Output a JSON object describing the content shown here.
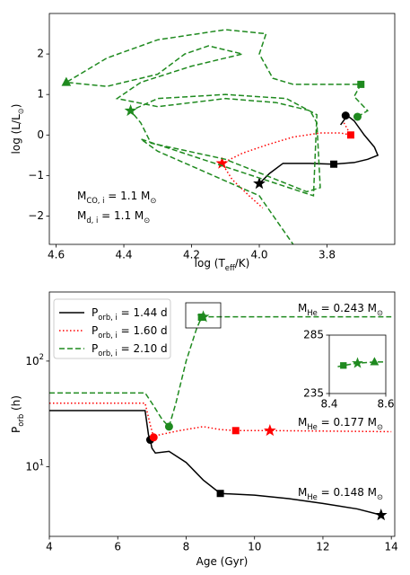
{
  "chart_data": [
    {
      "type": "line",
      "xlabel": [
        "log (T",
        "eff",
        "/K)"
      ],
      "ylabel": [
        "log (L/L",
        "⊙",
        ")"
      ],
      "xlim": [
        4.62,
        3.6
      ],
      "ylim": [
        -2.7,
        3.0
      ],
      "xticks": [
        4.6,
        4.4,
        4.2,
        {
          "value": 4,
          "label": "4.0"
        },
        3.8
      ],
      "yticks": [
        {
          "value": -2,
          "label": "−2"
        },
        {
          "value": -1,
          "label": "−1"
        },
        0,
        1,
        2
      ],
      "annotations": [
        [
          "M",
          "CO, i",
          " = 1.1 M",
          "⊙"
        ],
        [
          "M",
          "d, i",
          "   = 1.1 M",
          "⊙"
        ]
      ],
      "series": [
        {
          "color": "#000000",
          "style": "solid",
          "x": [
            3.76,
            3.74,
            3.72,
            3.69,
            3.66,
            3.65,
            3.68,
            3.72,
            3.78,
            3.85,
            3.93,
            3.97,
            4.0
          ],
          "values": [
            0.25,
            0.48,
            0.35,
            0.0,
            -0.3,
            -0.5,
            -0.6,
            -0.68,
            -0.72,
            -0.7,
            -0.7,
            -0.95,
            -1.2
          ],
          "markers": {
            "x": [
              3.745,
              3.78,
              4.0
            ],
            "y": [
              0.48,
              -0.72,
              -1.2
            ],
            "symbols": [
              "circle",
              "square",
              "star"
            ]
          }
        },
        {
          "color": "#ff0000",
          "style": "dotted",
          "x": [
            3.75,
            3.73,
            3.76,
            3.82,
            3.9,
            3.98,
            4.05,
            4.11,
            4.08,
            4.03,
            3.99
          ],
          "values": [
            0.3,
            0.0,
            0.05,
            0.05,
            -0.05,
            -0.25,
            -0.45,
            -0.7,
            -1.1,
            -1.5,
            -1.8
          ],
          "markers": {
            "x": [
              3.73,
              4.11
            ],
            "y": [
              0.0,
              -0.7
            ],
            "symbols": [
              "square",
              "star"
            ]
          }
        },
        {
          "color": "#1f8a1f",
          "style": "dashed",
          "x": [
            3.71,
            3.68,
            3.72,
            3.7,
            3.9,
            3.96,
            4.0,
            3.98,
            4.1,
            4.3,
            4.45,
            4.57,
            4.45,
            4.3,
            4.22,
            4.15,
            4.05,
            4.2,
            4.35,
            4.42,
            4.3,
            4.1,
            3.95,
            3.85,
            3.83,
            3.82,
            3.86,
            4.1,
            4.32,
            4.35,
            4.38,
            4.3,
            4.1,
            3.92,
            3.83,
            3.84,
            4.35,
            4.3,
            4.0,
            3.9
          ],
          "values": [
            0.45,
            0.6,
            0.95,
            1.25,
            1.25,
            1.4,
            2.0,
            2.5,
            2.6,
            2.35,
            1.9,
            1.3,
            1.2,
            1.5,
            2.0,
            2.2,
            2.0,
            1.7,
            1.3,
            0.9,
            0.7,
            0.9,
            0.8,
            0.6,
            0.3,
            -1.3,
            -1.4,
            -0.6,
            -0.2,
            0.3,
            0.6,
            0.9,
            1.0,
            0.9,
            0.5,
            -1.5,
            -0.1,
            -0.4,
            -1.5,
            -2.7
          ],
          "markers": {
            "x": [
              3.71,
              3.7,
              4.57,
              4.38
            ],
            "y": [
              0.45,
              1.25,
              1.3,
              0.6
            ],
            "symbols": [
              "circle",
              "square",
              "triangle",
              "star"
            ]
          }
        }
      ]
    },
    {
      "type": "line",
      "log_y": true,
      "legend": "upper left",
      "xlabel": [
        "Age (Gyr)"
      ],
      "ylabel": [
        "P",
        "orb",
        " (h)"
      ],
      "xlim": [
        4,
        14.1
      ],
      "ylim": [
        2.2,
        450
      ],
      "xticks": [
        4,
        6,
        8,
        10,
        12,
        14
      ],
      "yticks": [
        {
          "value": 10,
          "label": [
            "10",
            "1"
          ]
        },
        {
          "value": 100,
          "label": [
            "10",
            "2"
          ]
        }
      ],
      "annotations": [
        [
          "M",
          "He",
          " = 0.243 M",
          "⊙"
        ],
        [
          "M",
          "He",
          " = 0.177 M",
          "⊙"
        ],
        [
          "M",
          "He",
          " = 0.148 M",
          "⊙"
        ]
      ],
      "series": [
        {
          "name": [
            "P",
            "orb, i",
            " = 1.44 d"
          ],
          "color": "#000000",
          "style": "solid",
          "x": [
            4,
            6.8,
            6.9,
            6.95,
            7.0,
            7.1,
            7.5,
            8.0,
            8.5,
            9.0,
            10,
            11,
            12,
            13,
            13.7
          ],
          "values": [
            34,
            34,
            20,
            18,
            15,
            13.5,
            14,
            11,
            7.5,
            5.6,
            5.4,
            5.0,
            4.5,
            4.0,
            3.5
          ],
          "markers": {
            "x": [
              6.95,
              9.0,
              13.7
            ],
            "y": [
              18,
              5.6,
              3.5
            ],
            "symbols": [
              "circle",
              "square",
              "star"
            ]
          }
        },
        {
          "name": [
            "P",
            "orb, i",
            " = 1.60 d"
          ],
          "color": "#ff0000",
          "style": "dotted",
          "x": [
            4,
            6.8,
            6.95,
            7.05,
            7.2,
            7.8,
            8.5,
            9.0,
            9.45,
            10.5,
            14
          ],
          "values": [
            40,
            40,
            25,
            19,
            20,
            22,
            24,
            22.5,
            22,
            22,
            21.5
          ],
          "markers": {
            "x": [
              7.05,
              9.45,
              10.45
            ],
            "y": [
              19,
              22,
              22
            ],
            "symbols": [
              "circle",
              "square",
              "star"
            ]
          }
        },
        {
          "name": [
            "P",
            "orb, i",
            " = 2.10 d"
          ],
          "color": "#1f8a1f",
          "style": "dashed",
          "x": [
            4,
            6.8,
            7.0,
            7.3,
            7.5,
            7.7,
            8.0,
            8.3,
            8.45,
            8.5,
            9,
            14
          ],
          "values": [
            50,
            50,
            40,
            28,
            24,
            40,
            100,
            200,
            260,
            262,
            262,
            262
          ],
          "markers": {
            "x": [
              7.5,
              8.45,
              8.5
            ],
            "y": [
              24,
              260,
              262
            ],
            "symbols": [
              "circle",
              "square",
              "star"
            ]
          }
        }
      ]
    },
    {
      "type": "line",
      "xlim": [
        8.4,
        8.6
      ],
      "ylim": [
        235,
        285
      ],
      "xticks": [
        8.4,
        8.6
      ],
      "yticks": [
        235,
        285
      ],
      "series": [
        {
          "color": "#1f8a1f",
          "style": "dashed",
          "x": [
            8.43,
            8.45,
            8.5,
            8.56,
            8.6
          ],
          "values": [
            258,
            259,
            261,
            262,
            262
          ],
          "markers": {
            "x": [
              8.45,
              8.5,
              8.56
            ],
            "y": [
              259,
              261,
              262
            ],
            "symbols": [
              "square",
              "star",
              "triangle"
            ]
          }
        }
      ]
    }
  ]
}
